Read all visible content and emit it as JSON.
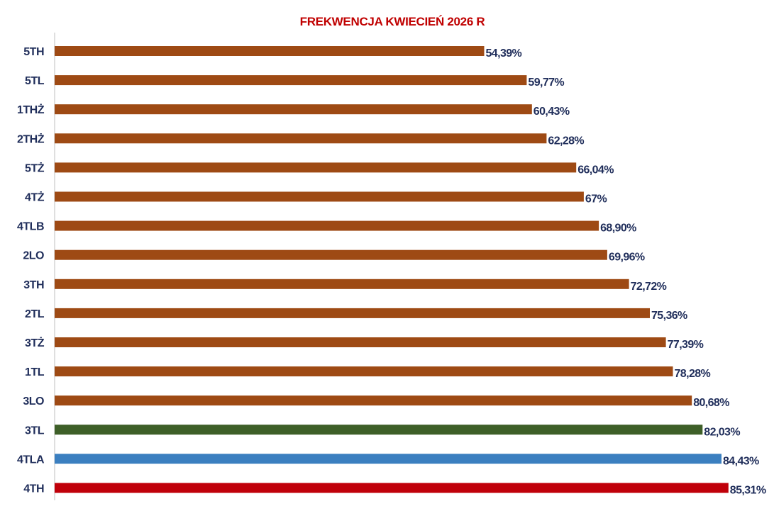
{
  "chart_data": {
    "type": "bar",
    "orientation": "horizontal",
    "title": "FREKWENCJA KWIECIEŃ 2026 R",
    "xlabel": "",
    "ylabel": "",
    "xlim": [
      0,
      85.6
    ],
    "grid": false,
    "legend": "none",
    "categories": [
      "5TH",
      "5TL",
      "1THŻ",
      "2THŻ",
      "5TŻ",
      "4TŻ",
      "4TLB",
      "2LO",
      "3TH",
      "2TL",
      "3TŻ",
      "1TL",
      "3LO",
      "3TL",
      "4TLA",
      "4TH"
    ],
    "values": [
      54.39,
      59.77,
      60.43,
      62.28,
      66.04,
      67,
      68.9,
      69.96,
      72.72,
      75.36,
      77.39,
      78.28,
      80.68,
      82.03,
      84.43,
      85.31
    ],
    "value_labels": [
      "54,39%",
      "59,77%",
      "60,43%",
      "62,28%",
      "66,04%",
      "67%",
      "68,90%",
      "69,96%",
      "72,72%",
      "75,36%",
      "77,39%",
      "78,28%",
      "80,68%",
      "82,03%",
      "84,43%",
      "85,31%"
    ],
    "colors": [
      "#9e4a14",
      "#9e4a14",
      "#9e4a14",
      "#9e4a14",
      "#9e4a14",
      "#9e4a14",
      "#9e4a14",
      "#9e4a14",
      "#9e4a14",
      "#9e4a14",
      "#9e4a14",
      "#9e4a14",
      "#9e4a14",
      "#3e5f28",
      "#3b7fc0",
      "#c0000a"
    ],
    "title_color": "#c00000",
    "category_label_color": "#1f2d5a",
    "value_label_color": "#1f2d5a",
    "axis_color": "#bfbfbf"
  }
}
